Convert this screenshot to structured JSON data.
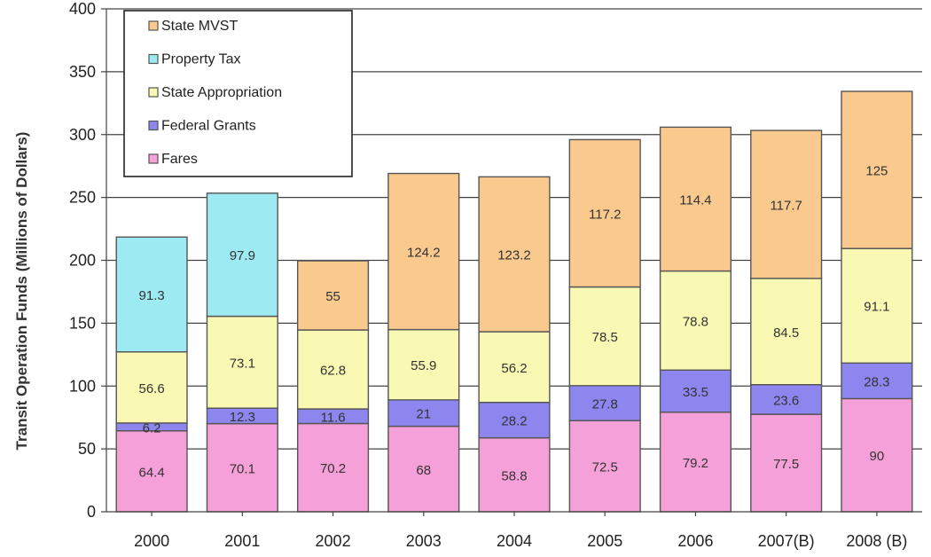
{
  "chart_data": {
    "type": "bar",
    "stacked": true,
    "title": "",
    "xlabel": "",
    "ylabel": "Transit Operation Funds (Millions of Dollars)",
    "ylim": [
      0,
      400
    ],
    "yticks": [
      0,
      50,
      100,
      150,
      200,
      250,
      300,
      350,
      400
    ],
    "grid": true,
    "legend_position": "top-left",
    "categories": [
      "2000",
      "2001",
      "2002",
      "2003",
      "2004",
      "2005",
      "2006",
      "2007(B)",
      "2008 (B)"
    ],
    "series": [
      {
        "name": "Fares",
        "color": "#f5a0d8",
        "values": [
          64.4,
          70.1,
          70.2,
          68,
          58.8,
          72.5,
          79.2,
          77.5,
          90
        ]
      },
      {
        "name": "Federal Grants",
        "color": "#8c86ee",
        "values": [
          6.2,
          12.3,
          11.6,
          21,
          28.2,
          27.8,
          33.5,
          23.6,
          28.3
        ]
      },
      {
        "name": "State Appropriation",
        "color": "#f9f9b4",
        "values": [
          56.6,
          73.1,
          62.8,
          55.9,
          56.2,
          78.5,
          78.8,
          84.5,
          91.1
        ]
      },
      {
        "name": "Property Tax",
        "color": "#9eeaf2",
        "values": [
          91.3,
          97.9,
          null,
          null,
          null,
          null,
          null,
          null,
          null
        ]
      },
      {
        "name": "State MVST",
        "color": "#f9c98e",
        "values": [
          null,
          null,
          55,
          124.2,
          123.2,
          117.2,
          114.4,
          117.7,
          125
        ]
      }
    ],
    "legend_order": [
      "State MVST",
      "Property Tax",
      "State Appropriation",
      "Federal Grants",
      "Fares"
    ]
  }
}
